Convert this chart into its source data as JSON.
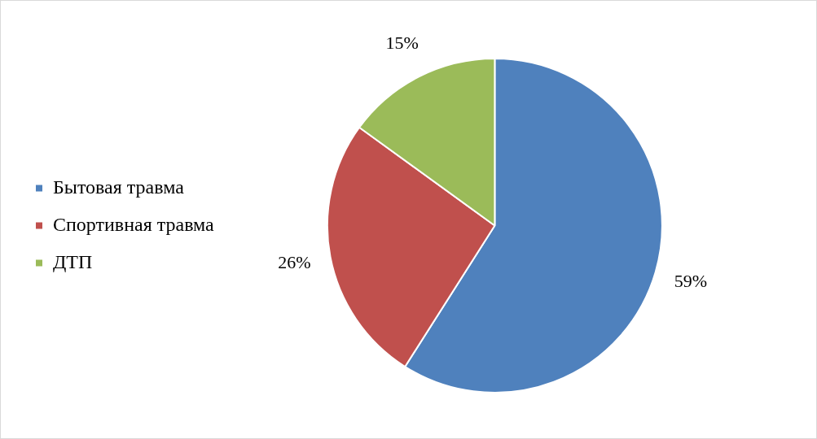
{
  "chart_data": {
    "type": "pie",
    "categories": [
      "Бытовая травма",
      "Спортивная травма",
      "ДТП"
    ],
    "values": [
      59,
      26,
      15
    ],
    "colors": [
      "#4f81bd",
      "#c0504d",
      "#9bbb59"
    ],
    "value_labels": [
      "59%",
      "26%",
      "15%"
    ],
    "legend": "left"
  }
}
